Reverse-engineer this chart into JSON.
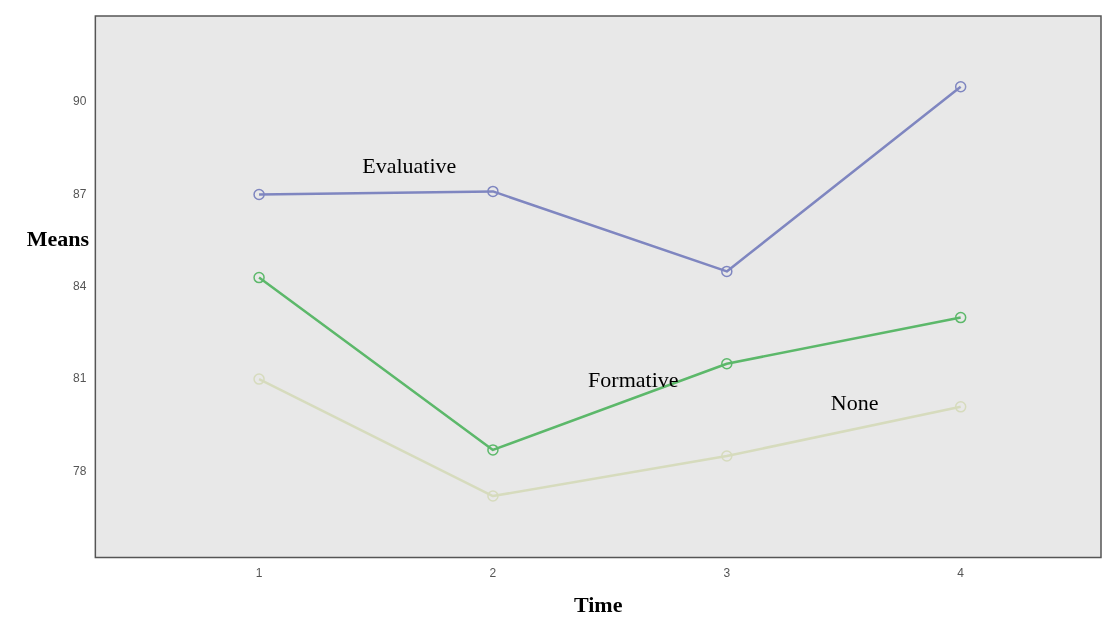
{
  "chart_data": {
    "type": "line",
    "xlabel": "Time",
    "ylabel": "Means",
    "x": [
      1,
      2,
      3,
      4
    ],
    "xlim": [
      0.3,
      4.6
    ],
    "xticks": [
      1,
      2,
      3,
      4
    ],
    "ylim": [
      75.2,
      92.8
    ],
    "yticks": [
      78,
      81,
      84,
      87,
      90
    ],
    "grid": false,
    "legend": false,
    "marker": "circle",
    "line_style": "solid",
    "series": [
      {
        "name": "Evaluative",
        "color": "#7f86c0",
        "values": [
          87.0,
          87.1,
          84.5,
          90.5
        ]
      },
      {
        "name": "Formative",
        "color": "#5cb86a",
        "values": [
          84.3,
          78.7,
          81.5,
          83.0
        ]
      },
      {
        "name": "None",
        "color": "#d6dbbd",
        "values": [
          81.0,
          77.2,
          78.5,
          80.1
        ]
      }
    ]
  }
}
